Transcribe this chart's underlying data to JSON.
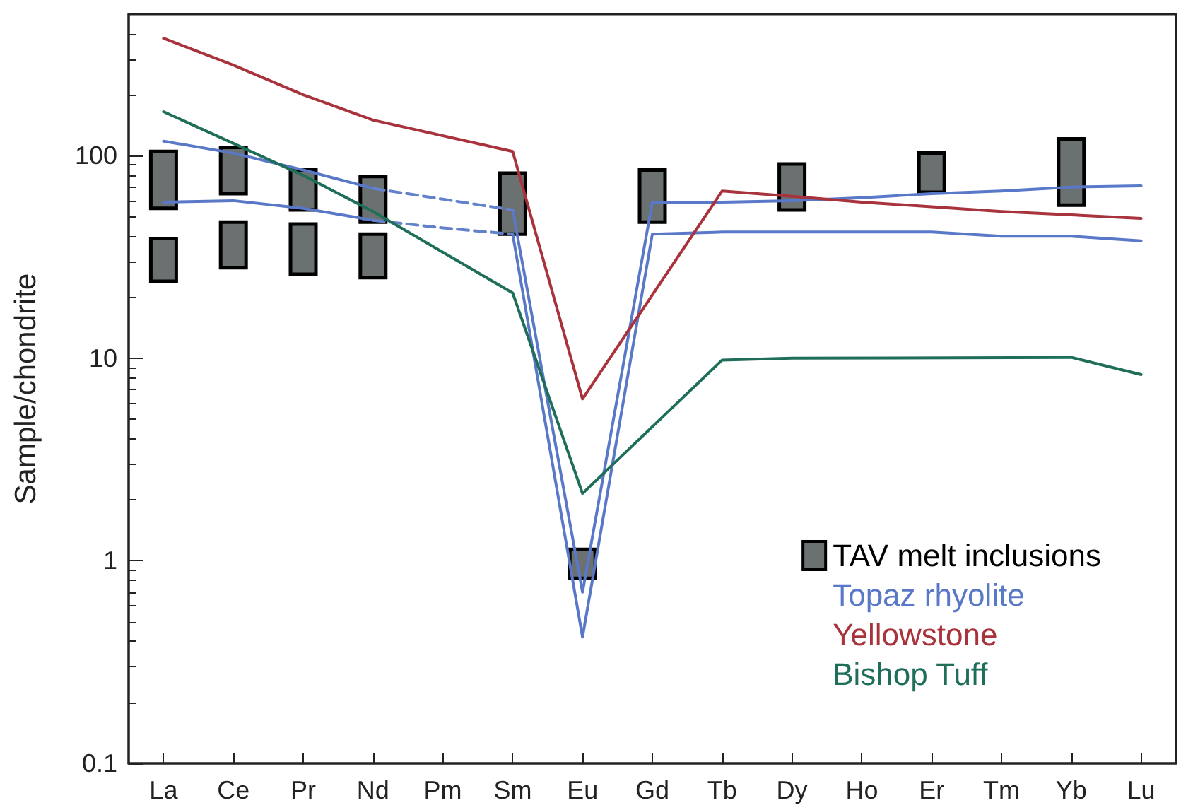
{
  "chart_data": {
    "type": "line",
    "ylabel": "Sample/chondrite",
    "categories": [
      "La",
      "Ce",
      "Pr",
      "Nd",
      "Pm",
      "Sm",
      "Eu",
      "Gd",
      "Tb",
      "Dy",
      "Ho",
      "Er",
      "Tm",
      "Yb",
      "Lu"
    ],
    "log": "y",
    "ylim": [
      0.1,
      500
    ],
    "yticks": [
      0.1,
      1,
      10,
      100
    ],
    "grid": false,
    "legend": "bottom right",
    "marker": "none",
    "series": [
      {
        "name": "TAV melt inclusions",
        "type": "bar",
        "color": "#6b7070",
        "base": [
          55,
          65,
          54,
          47,
          null,
          41,
          0.82,
          47,
          null,
          54,
          null,
          66,
          null,
          57,
          null
        ],
        "values": [
          50,
          45,
          31,
          32,
          null,
          41,
          0.32,
          38,
          null,
          37,
          null,
          37,
          null,
          64,
          null
        ]
      },
      {
        "type": "bar",
        "color": "#6b7070",
        "base": [
          24,
          28,
          26,
          25,
          null,
          null,
          null,
          null,
          null,
          null,
          null,
          null,
          null,
          null,
          null
        ],
        "values": [
          15,
          19,
          20,
          16,
          null,
          null,
          null,
          null,
          null,
          null,
          null,
          null,
          null,
          null,
          null
        ]
      },
      {
        "name": "Topaz rhyolite",
        "color": "#5a78c8",
        "values": [
          118,
          103,
          85,
          69,
          null,
          54,
          0.7,
          59,
          59,
          60,
          62,
          65,
          67,
          70,
          71
        ]
      },
      {
        "color": "#5a78c8",
        "values": [
          59,
          60,
          55,
          48,
          null,
          41,
          0.42,
          41,
          42,
          42,
          42,
          42,
          40,
          40,
          38
        ]
      },
      {
        "color": "#6482cc",
        "line_style": "dashed",
        "x": [
          "Nd",
          "Pm",
          "Sm"
        ],
        "values": [
          69,
          61,
          54
        ]
      },
      {
        "color": "#6381cb",
        "line_style": "dashed",
        "x": [
          "Nd",
          "Pm",
          "Sm"
        ],
        "values": [
          48,
          44,
          41
        ]
      },
      {
        "name": "Yellowstone",
        "color": "#a8333c",
        "x": [
          "La",
          "Ce",
          "Pr",
          "Nd",
          "Sm",
          "Eu",
          "Tb",
          "Dy",
          "Ho",
          "Er",
          "Tm",
          "Yb",
          "Lu"
        ],
        "values": [
          380,
          280,
          200,
          150,
          105,
          6.3,
          67,
          63,
          59,
          56,
          53,
          51,
          49
        ]
      },
      {
        "name": "Bishop Tuff",
        "color": "#1f6e5a",
        "x": [
          "La",
          "Ce",
          "Pr",
          "Nd",
          "Sm",
          "Eu",
          "Tb",
          "Dy",
          "Yb",
          "Lu"
        ],
        "values": [
          165,
          115,
          80,
          53,
          21,
          2.15,
          9.8,
          10,
          10.1,
          8.3
        ]
      }
    ]
  }
}
